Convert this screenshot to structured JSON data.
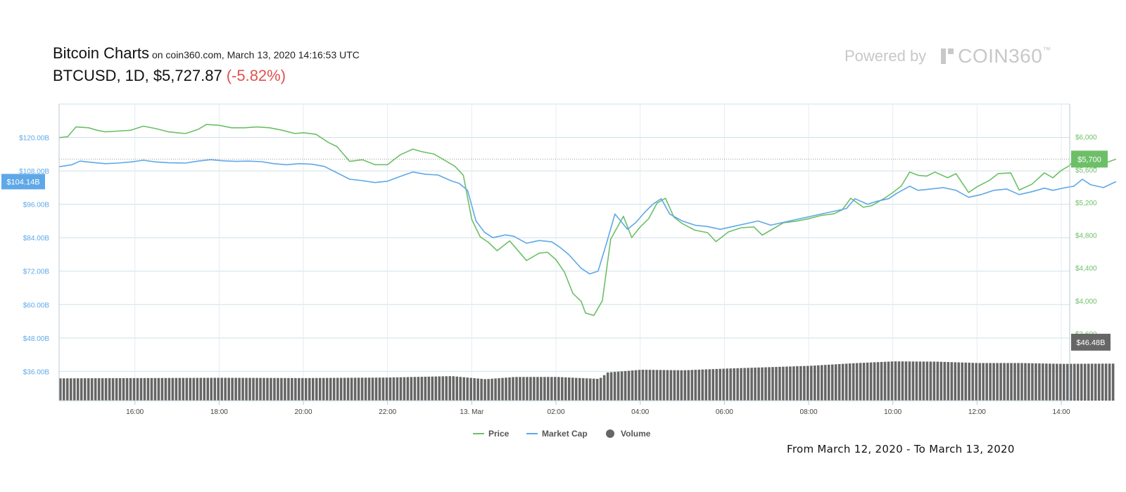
{
  "header": {
    "title": "Bitcoin Charts",
    "subtitle": "on coin360.com, March 13, 2020 14:16:53 UTC",
    "symbol": "BTCUSD,",
    "interval": "1D,",
    "price": "$5,727.87",
    "change": "(-5.82%)"
  },
  "brand": {
    "powered_by": "Powered by",
    "name": "COIN360",
    "tm": "™"
  },
  "footer": {
    "range_text": "From March 12, 2020 - To March 13, 2020"
  },
  "colors": {
    "price": "#6dbf67",
    "market_cap": "#5fa8e8",
    "volume": "#666666",
    "grid": "#cfe0e8",
    "change_negative": "#e0524f"
  },
  "chart_data": {
    "type": "line",
    "legend": {
      "placement": "bottom-center",
      "items": [
        {
          "name": "Price",
          "color": "#6dbf67",
          "icon": "line-icon"
        },
        {
          "name": "Market Cap",
          "color": "#5fa8e8",
          "icon": "line-icon"
        },
        {
          "name": "Volume",
          "color": "#666666",
          "icon": "circle-icon"
        }
      ]
    },
    "x_ticks": [
      "16:00",
      "18:00",
      "20:00",
      "22:00",
      "13. Mar",
      "02:00",
      "04:00",
      "06:00",
      "08:00",
      "10:00",
      "12:00",
      "14:00"
    ],
    "x_tick_hours": [
      16,
      18,
      20,
      22,
      24,
      26,
      28,
      30,
      32,
      34,
      36,
      38
    ],
    "x_range_hours": [
      14.2,
      38.2
    ],
    "left_axis": {
      "label": "Market Cap",
      "ticks": [
        "$120.00B",
        "$108.00B",
        "$96.00B",
        "$84.00B",
        "$72.00B",
        "$60.00B",
        "$48.00B",
        "$36.00B"
      ],
      "tick_values": [
        120,
        108,
        96,
        84,
        72,
        60,
        48,
        36
      ],
      "range": [
        25.5,
        132
      ],
      "current_label": "$104.14B",
      "current_value": 104.14
    },
    "right_axis": {
      "label": "Price",
      "ticks": [
        "$6,000",
        "$5,600",
        "$5,200",
        "$4,800",
        "$4,400",
        "$4,000",
        "$3,600"
      ],
      "tick_values": [
        6000,
        5600,
        5200,
        4800,
        4400,
        4000,
        3600
      ],
      "range": [
        2780,
        6400
      ],
      "current_label": "$5,700",
      "current_value": 5727.87,
      "volume_label": "$46.48B",
      "volume_value": 46.48
    },
    "series": [
      {
        "name": "Price",
        "axis": "right",
        "points": [
          [
            14.2,
            5990
          ],
          [
            14.4,
            6000
          ],
          [
            14.6,
            6120
          ],
          [
            14.9,
            6110
          ],
          [
            15.1,
            6080
          ],
          [
            15.3,
            6060
          ],
          [
            15.6,
            6070
          ],
          [
            15.9,
            6080
          ],
          [
            16.2,
            6130
          ],
          [
            16.5,
            6100
          ],
          [
            16.8,
            6060
          ],
          [
            17.2,
            6040
          ],
          [
            17.5,
            6090
          ],
          [
            17.7,
            6150
          ],
          [
            18.0,
            6140
          ],
          [
            18.3,
            6110
          ],
          [
            18.6,
            6110
          ],
          [
            18.9,
            6120
          ],
          [
            19.2,
            6110
          ],
          [
            19.5,
            6080
          ],
          [
            19.8,
            6040
          ],
          [
            20.0,
            6050
          ],
          [
            20.3,
            6030
          ],
          [
            20.6,
            5930
          ],
          [
            20.8,
            5880
          ],
          [
            21.1,
            5700
          ],
          [
            21.4,
            5720
          ],
          [
            21.7,
            5660
          ],
          [
            22.0,
            5660
          ],
          [
            22.3,
            5780
          ],
          [
            22.6,
            5850
          ],
          [
            22.8,
            5820
          ],
          [
            23.1,
            5790
          ],
          [
            23.4,
            5700
          ],
          [
            23.6,
            5640
          ],
          [
            23.8,
            5530
          ],
          [
            24.0,
            4990
          ],
          [
            24.2,
            4780
          ],
          [
            24.4,
            4710
          ],
          [
            24.6,
            4610
          ],
          [
            24.9,
            4730
          ],
          [
            25.1,
            4610
          ],
          [
            25.3,
            4490
          ],
          [
            25.6,
            4580
          ],
          [
            25.8,
            4590
          ],
          [
            26.0,
            4500
          ],
          [
            26.2,
            4350
          ],
          [
            26.4,
            4090
          ],
          [
            26.6,
            3990
          ],
          [
            26.7,
            3850
          ],
          [
            26.9,
            3820
          ],
          [
            27.1,
            4000
          ],
          [
            27.3,
            4750
          ],
          [
            27.6,
            5030
          ],
          [
            27.8,
            4770
          ],
          [
            28.0,
            4900
          ],
          [
            28.2,
            5000
          ],
          [
            28.4,
            5190
          ],
          [
            28.6,
            5250
          ],
          [
            28.8,
            5020
          ],
          [
            29.0,
            4940
          ],
          [
            29.3,
            4860
          ],
          [
            29.6,
            4830
          ],
          [
            29.8,
            4720
          ],
          [
            30.1,
            4840
          ],
          [
            30.4,
            4890
          ],
          [
            30.7,
            4900
          ],
          [
            30.9,
            4800
          ],
          [
            31.1,
            4860
          ],
          [
            31.4,
            4950
          ],
          [
            31.7,
            4970
          ],
          [
            32.0,
            5000
          ],
          [
            32.3,
            5040
          ],
          [
            32.6,
            5060
          ],
          [
            32.8,
            5110
          ],
          [
            33.0,
            5250
          ],
          [
            33.3,
            5140
          ],
          [
            33.5,
            5160
          ],
          [
            33.8,
            5250
          ],
          [
            34.0,
            5320
          ],
          [
            34.2,
            5400
          ],
          [
            34.4,
            5570
          ],
          [
            34.6,
            5530
          ],
          [
            34.8,
            5520
          ],
          [
            35.0,
            5570
          ],
          [
            35.3,
            5500
          ],
          [
            35.5,
            5550
          ],
          [
            35.8,
            5320
          ],
          [
            36.0,
            5390
          ],
          [
            36.3,
            5470
          ],
          [
            36.5,
            5550
          ],
          [
            36.8,
            5560
          ],
          [
            37.0,
            5350
          ],
          [
            37.3,
            5420
          ],
          [
            37.6,
            5560
          ],
          [
            37.8,
            5500
          ],
          [
            38.0,
            5590
          ],
          [
            38.2,
            5650
          ],
          [
            38.4,
            5790
          ],
          [
            38.6,
            5670
          ],
          [
            38.8,
            5620
          ],
          [
            39.1,
            5690
          ],
          [
            39.3,
            5727.87
          ]
        ]
      },
      {
        "name": "Market Cap",
        "axis": "left",
        "points": [
          [
            14.2,
            109.5
          ],
          [
            14.5,
            110.2
          ],
          [
            14.7,
            111.5
          ],
          [
            15.0,
            111.0
          ],
          [
            15.3,
            110.6
          ],
          [
            15.6,
            110.8
          ],
          [
            15.9,
            111.2
          ],
          [
            16.2,
            111.8
          ],
          [
            16.5,
            111.2
          ],
          [
            16.8,
            110.9
          ],
          [
            17.2,
            110.8
          ],
          [
            17.5,
            111.5
          ],
          [
            17.8,
            112.0
          ],
          [
            18.1,
            111.6
          ],
          [
            18.4,
            111.4
          ],
          [
            18.7,
            111.5
          ],
          [
            19.0,
            111.3
          ],
          [
            19.3,
            110.6
          ],
          [
            19.6,
            110.2
          ],
          [
            19.9,
            110.6
          ],
          [
            20.2,
            110.4
          ],
          [
            20.5,
            109.6
          ],
          [
            20.8,
            107.3
          ],
          [
            21.1,
            105.0
          ],
          [
            21.4,
            104.5
          ],
          [
            21.7,
            103.8
          ],
          [
            22.0,
            104.3
          ],
          [
            22.3,
            106.0
          ],
          [
            22.6,
            107.6
          ],
          [
            22.9,
            106.8
          ],
          [
            23.2,
            106.5
          ],
          [
            23.5,
            104.5
          ],
          [
            23.7,
            103.5
          ],
          [
            23.9,
            101.0
          ],
          [
            24.1,
            90.0
          ],
          [
            24.3,
            86.0
          ],
          [
            24.5,
            84.0
          ],
          [
            24.8,
            85.0
          ],
          [
            25.0,
            84.5
          ],
          [
            25.3,
            82.0
          ],
          [
            25.6,
            83.0
          ],
          [
            25.9,
            82.5
          ],
          [
            26.1,
            80.5
          ],
          [
            26.3,
            78.0
          ],
          [
            26.6,
            73.0
          ],
          [
            26.8,
            71.0
          ],
          [
            27.0,
            72.0
          ],
          [
            27.2,
            82.0
          ],
          [
            27.4,
            92.5
          ],
          [
            27.7,
            87.0
          ],
          [
            27.9,
            89.5
          ],
          [
            28.1,
            93.0
          ],
          [
            28.3,
            96.0
          ],
          [
            28.5,
            98.0
          ],
          [
            28.7,
            92.5
          ],
          [
            29.0,
            90.0
          ],
          [
            29.3,
            88.5
          ],
          [
            29.6,
            88.0
          ],
          [
            29.9,
            87.0
          ],
          [
            30.2,
            88.0
          ],
          [
            30.5,
            89.0
          ],
          [
            30.8,
            90.0
          ],
          [
            31.1,
            88.5
          ],
          [
            31.4,
            89.5
          ],
          [
            31.7,
            90.5
          ],
          [
            32.0,
            91.5
          ],
          [
            32.3,
            92.5
          ],
          [
            32.6,
            93.5
          ],
          [
            32.9,
            94.5
          ],
          [
            33.1,
            98.0
          ],
          [
            33.4,
            96.0
          ],
          [
            33.6,
            97.0
          ],
          [
            33.9,
            98.0
          ],
          [
            34.1,
            100.0
          ],
          [
            34.4,
            102.5
          ],
          [
            34.6,
            101.0
          ],
          [
            34.9,
            101.5
          ],
          [
            35.2,
            102.0
          ],
          [
            35.5,
            101.0
          ],
          [
            35.8,
            98.5
          ],
          [
            36.1,
            99.5
          ],
          [
            36.4,
            101.0
          ],
          [
            36.7,
            101.5
          ],
          [
            37.0,
            99.5
          ],
          [
            37.3,
            100.5
          ],
          [
            37.6,
            101.8
          ],
          [
            37.8,
            101.0
          ],
          [
            38.1,
            102.0
          ],
          [
            38.3,
            102.5
          ],
          [
            38.5,
            105.0
          ],
          [
            38.7,
            103.0
          ],
          [
            39.0,
            102.0
          ],
          [
            39.3,
            104.14
          ]
        ]
      }
    ],
    "volume": {
      "axis": "left",
      "unit": "B",
      "start_hour": 14.2,
      "end_hour": 39.2,
      "profile": [
        [
          14.2,
          33.5
        ],
        [
          18.0,
          33.7
        ],
        [
          20.0,
          33.6
        ],
        [
          22.0,
          33.8
        ],
        [
          23.5,
          34.3
        ],
        [
          24.3,
          33.2
        ],
        [
          25.0,
          34.0
        ],
        [
          26.0,
          34.0
        ],
        [
          27.0,
          33.3
        ],
        [
          27.2,
          35.6
        ],
        [
          28.0,
          36.6
        ],
        [
          29.0,
          36.4
        ],
        [
          30.0,
          37.0
        ],
        [
          31.0,
          37.5
        ],
        [
          32.0,
          38.0
        ],
        [
          33.0,
          38.9
        ],
        [
          34.0,
          39.6
        ],
        [
          35.0,
          39.5
        ],
        [
          36.0,
          39.0
        ],
        [
          37.0,
          39.0
        ],
        [
          38.0,
          38.7
        ],
        [
          39.2,
          38.8
        ]
      ]
    }
  }
}
